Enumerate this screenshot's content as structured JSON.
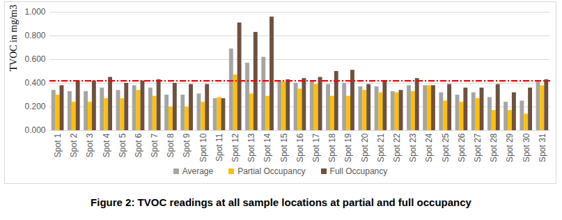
{
  "chart_data": {
    "type": "bar",
    "title": "Figure 2: TVOC readings at all sample locations at partial and full occupancy",
    "y_label": "TVOC in mg/m3",
    "categories": [
      "Spot 1",
      "Spot 2",
      "Spot 3",
      "Spot 4",
      "Spot 5",
      "Spot 6",
      "Spot 7",
      "Spot 8",
      "Spot 9",
      "Spot 10",
      "Spot 11",
      "Spot 12",
      "Spot 13",
      "Spot 14",
      "Spot 15",
      "Spot 16",
      "Spot 17",
      "Spot 18",
      "Spot 19",
      "Spot 20",
      "Spot 21",
      "Spot 22",
      "Spot 23",
      "Spot 24",
      "Spot 25",
      "Spot 26",
      "Spot 27",
      "Spot 28",
      "Spot 29",
      "Spot 30",
      "Spot 31"
    ],
    "series": [
      {
        "name": "Average",
        "color": "#a5a5a5",
        "values": [
          0.34,
          0.33,
          0.33,
          0.36,
          0.34,
          0.38,
          0.36,
          0.3,
          0.3,
          0.31,
          0.27,
          0.69,
          0.57,
          0.62,
          0.42,
          0.4,
          0.42,
          0.39,
          0.4,
          0.37,
          0.37,
          0.33,
          0.38,
          0.38,
          0.32,
          0.3,
          0.32,
          0.28,
          0.24,
          0.25,
          0.41
        ]
      },
      {
        "name": "Partial Occupancy",
        "color": "#ffc000",
        "values": [
          0.3,
          0.24,
          0.24,
          0.27,
          0.27,
          0.34,
          0.29,
          0.2,
          0.2,
          0.24,
          0.28,
          0.47,
          0.31,
          0.29,
          0.41,
          0.35,
          0.39,
          0.29,
          0.29,
          0.34,
          0.32,
          0.32,
          0.33,
          0.38,
          0.25,
          0.24,
          0.27,
          0.17,
          0.17,
          0.14,
          0.38
        ]
      },
      {
        "name": "Full Occupancy",
        "color": "#6f5140",
        "values": [
          0.38,
          0.42,
          0.42,
          0.45,
          0.4,
          0.42,
          0.43,
          0.4,
          0.39,
          0.39,
          0.27,
          0.91,
          0.83,
          0.96,
          0.43,
          0.44,
          0.45,
          0.5,
          0.51,
          0.39,
          0.42,
          0.34,
          0.44,
          0.38,
          0.39,
          0.36,
          0.36,
          0.39,
          0.32,
          0.36,
          0.43
        ]
      }
    ],
    "reference_line": {
      "value": 0.42,
      "color": "#ff0000",
      "line_style": "dashdot"
    },
    "ylim": [
      0,
      1
    ],
    "yticks": [
      {
        "value": 0,
        "label": "0.000"
      },
      {
        "value": 0.2,
        "label": "0.200"
      },
      {
        "value": 0.4,
        "label": "0.400"
      },
      {
        "value": 0.6,
        "label": "0.600"
      },
      {
        "value": 0.8,
        "label": "0.800"
      },
      {
        "value": 1,
        "label": "1.000"
      }
    ],
    "grid": true,
    "legend": "bottom"
  }
}
